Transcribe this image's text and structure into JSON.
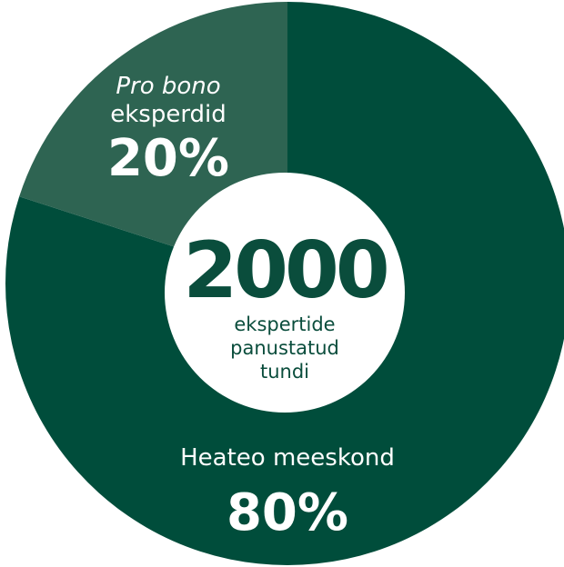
{
  "chart_data": {
    "type": "pie",
    "center": {
      "total": "2000",
      "caption_lines": [
        "ekspertide",
        "panustatud",
        "tundi"
      ]
    },
    "slices": [
      {
        "label": "Heateo meeskond",
        "value": 80,
        "value_label": "80%",
        "color": "#004d3b"
      },
      {
        "label": "Pro bono eksperdid",
        "label_lines": [
          "Pro bono",
          "eksperdid"
        ],
        "value": 20,
        "value_label": "20%",
        "color": "#2e6452"
      }
    ]
  },
  "colors": {
    "center_text": "#0a4d3c",
    "center_fill": "#ffffff",
    "label_text": "#ffffff"
  }
}
